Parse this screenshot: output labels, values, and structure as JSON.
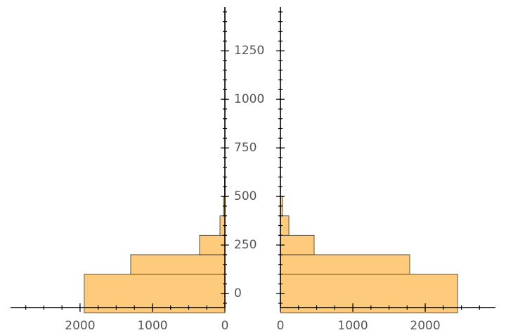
{
  "chart_data": [
    {
      "type": "histogram",
      "orientation": "horizontal",
      "x_inverted": true,
      "bins": [
        -100,
        100,
        200,
        300,
        400,
        500,
        600
      ],
      "values": [
        1942,
        1301,
        350,
        68,
        19,
        5
      ],
      "color": "#fdcb7b",
      "edgecolor": "#333333",
      "xlim": [
        0,
        2960
      ],
      "xticks": [
        0,
        1000,
        2000
      ],
      "xminor": 250,
      "ylim": [
        -72,
        1475
      ],
      "yticks": [
        0,
        250,
        500,
        750,
        1000,
        1250
      ],
      "yminor": 50,
      "ytick_labels": true
    },
    {
      "type": "histogram",
      "orientation": "horizontal",
      "x_inverted": false,
      "bins": [
        -100,
        100,
        200,
        300,
        400,
        500,
        600
      ],
      "values": [
        2447,
        1786,
        466,
        117,
        29,
        0
      ],
      "color": "#fdcb7b",
      "edgecolor": "#333333",
      "xlim": [
        0,
        2970
      ],
      "xticks": [
        0,
        1000,
        2000
      ],
      "xminor": 250,
      "ylim": [
        -72,
        1475
      ],
      "yticks": [
        0,
        250,
        500,
        750,
        1000,
        1250
      ],
      "yminor": 50,
      "ytick_labels": false
    }
  ]
}
